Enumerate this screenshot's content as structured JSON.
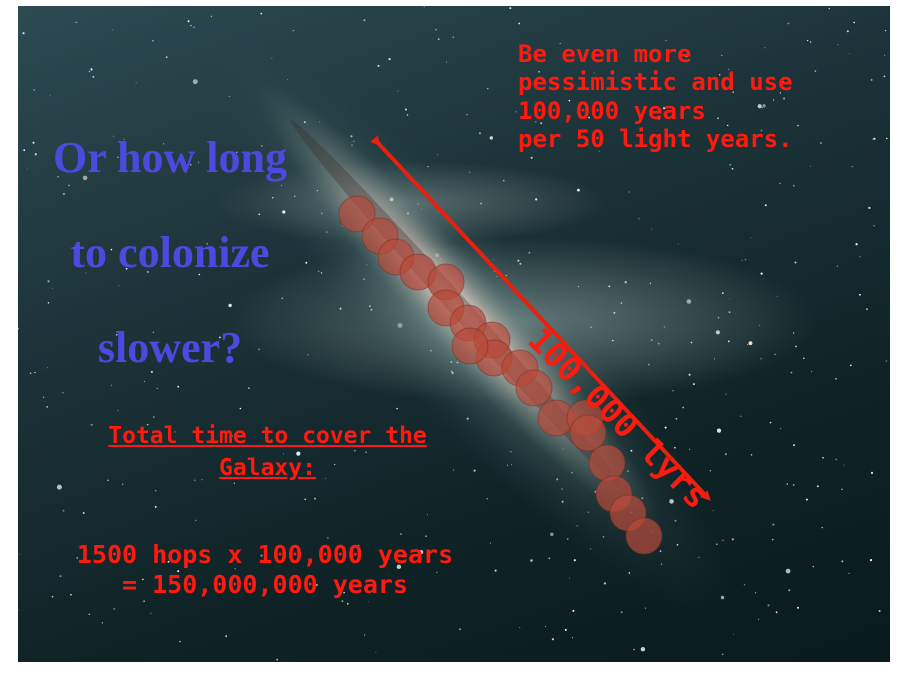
{
  "slide": {
    "title_lines": [
      "Or how long",
      "to colonize",
      "slower?"
    ],
    "note_lines": [
      "Be even more",
      "pessimistic and use",
      "100,000 years",
      "per 50 light years."
    ],
    "distance_label": "100,000 lyrs",
    "total_heading_lines": [
      "Total time to cover the",
      "Galaxy:"
    ],
    "total_calc_lines": [
      "1500 hops x 100,000 years",
      "= 150,000,000 years"
    ]
  },
  "colors": {
    "title": "#4a4adf",
    "text_red": "#ff1a10",
    "arrow": "#e8200e",
    "colony_fill": "#b84a3a"
  },
  "colony_count": 19
}
